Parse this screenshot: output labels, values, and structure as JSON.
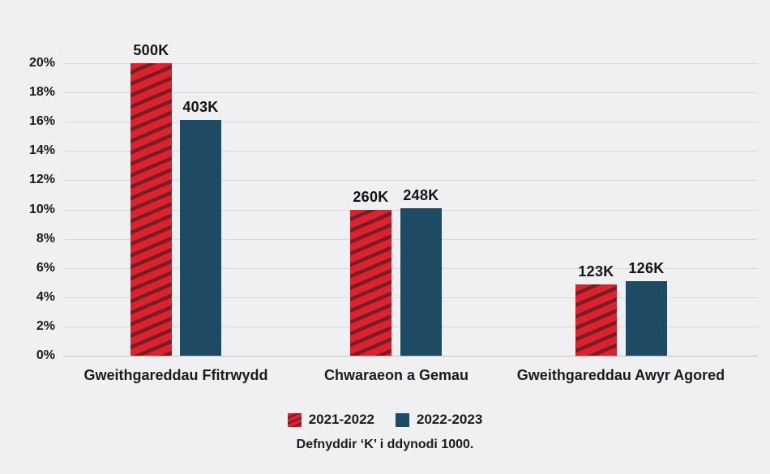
{
  "colors": {
    "background": "#f0f0f2",
    "gridline": "#d9d9db",
    "axis_baseline": "#c0c0c3",
    "text": "#1b1b1b"
  },
  "chart_data": {
    "type": "bar",
    "categories": [
      "Gweithgareddau Ffitrwydd",
      "Chwaraeon a Gemau",
      "Gweithgareddau Awyr Agored"
    ],
    "series": [
      {
        "name": "2021-2022",
        "color": "#db232d",
        "hatch_color": "#7c1b26",
        "pattern": "diagonal-stripes",
        "value_labels": [
          "500K",
          "260K",
          "123K"
        ],
        "values_thousands": [
          500,
          260,
          123
        ],
        "heights_pct": [
          20,
          10,
          4.9
        ]
      },
      {
        "name": "2022-2023",
        "color": "#1e4a63",
        "hatch_color": "",
        "pattern": "solid",
        "value_labels": [
          "403K",
          "248K",
          "126K"
        ],
        "values_thousands": [
          403,
          248,
          126
        ],
        "heights_pct": [
          16.1,
          10.1,
          5.1
        ]
      }
    ],
    "yticks": [
      "20%",
      "18%",
      "16%",
      "14%",
      "12%",
      "10%",
      "8%",
      "6%",
      "4%",
      "2%",
      "0%"
    ],
    "ylim": [
      0,
      20
    ],
    "grid": true,
    "legend_position": "bottom",
    "title": "",
    "xlabel": "",
    "ylabel": "",
    "footnote": "Defnyddir ‘K’ i ddynodi 1000."
  }
}
